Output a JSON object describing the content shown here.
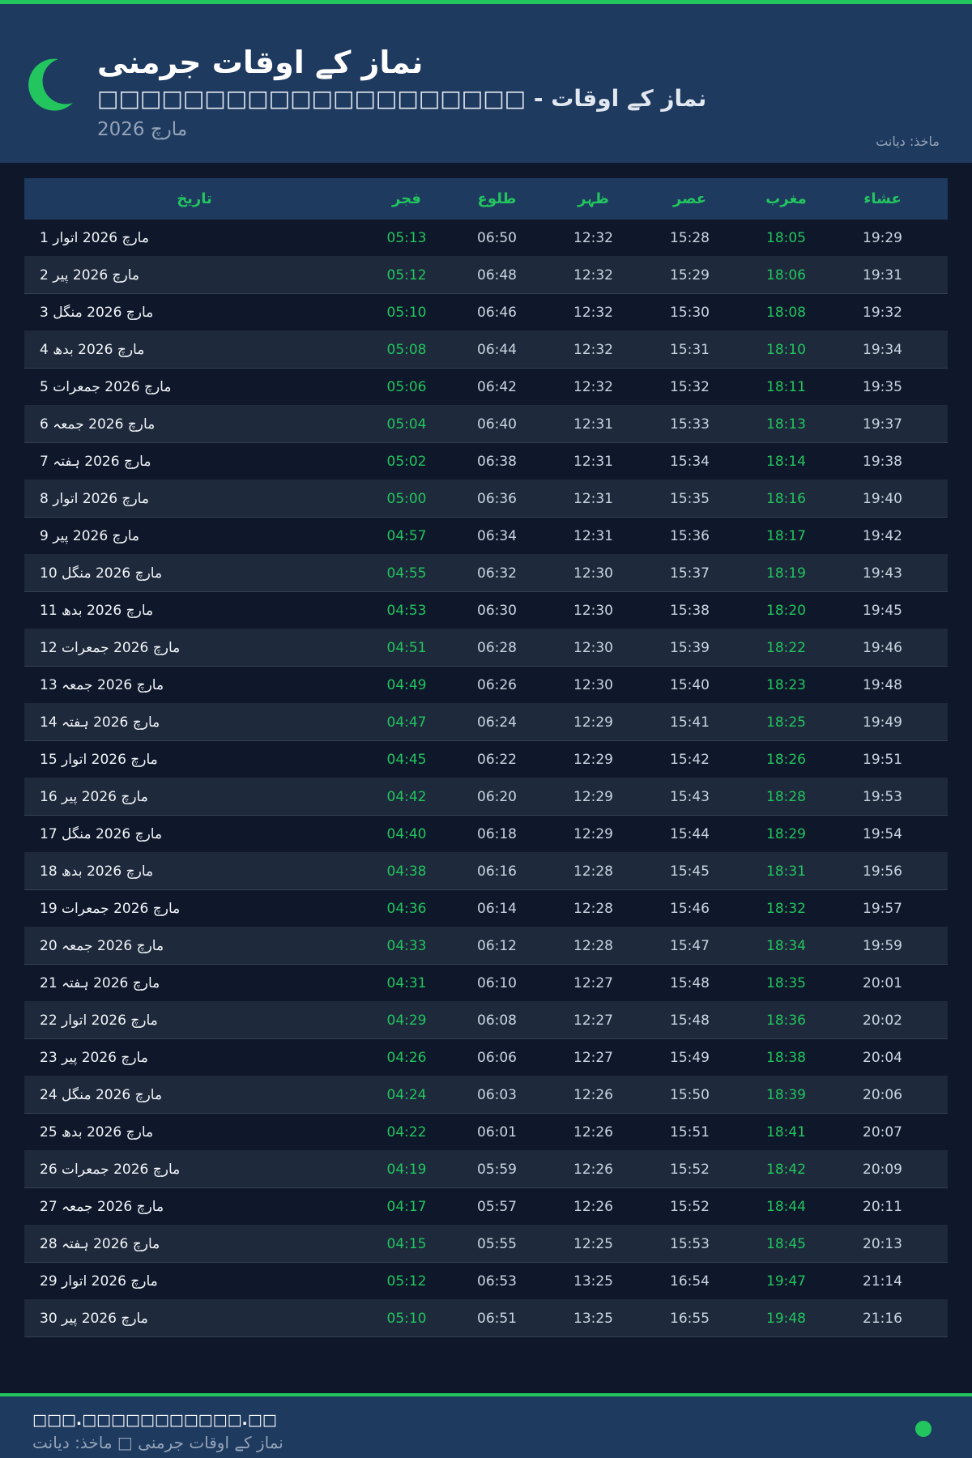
{
  "header": {
    "title": "نماز کے اوقات جرمنی",
    "subtitle": "□□□□□□□□□□□□□□□□□□□□ - نماز کے اوقات",
    "month": "مارچ 2026",
    "source": "ماخذ: دیانت"
  },
  "colors": {
    "accent": "#22c55e",
    "header_bg": "#1e3a5f",
    "page_bg": "#0f172a",
    "row_alt": "#1e293b"
  },
  "icons": {
    "logo": "crescent-moon-icon"
  },
  "table": {
    "columns": [
      "تاریخ",
      "فجر",
      "طلوع",
      "ظہر",
      "عصر",
      "مغرب",
      "عشاء"
    ],
    "rows": [
      [
        "1 مارچ 2026 اتوار",
        "05:13",
        "06:50",
        "12:32",
        "15:28",
        "18:05",
        "19:29"
      ],
      [
        "2 مارچ 2026 پیر",
        "05:12",
        "06:48",
        "12:32",
        "15:29",
        "18:06",
        "19:31"
      ],
      [
        "3 مارچ 2026 منگل",
        "05:10",
        "06:46",
        "12:32",
        "15:30",
        "18:08",
        "19:32"
      ],
      [
        "4 مارچ 2026 بدھ",
        "05:08",
        "06:44",
        "12:32",
        "15:31",
        "18:10",
        "19:34"
      ],
      [
        "5 مارچ 2026 جمعرات",
        "05:06",
        "06:42",
        "12:32",
        "15:32",
        "18:11",
        "19:35"
      ],
      [
        "6 مارچ 2026 جمعہ",
        "05:04",
        "06:40",
        "12:31",
        "15:33",
        "18:13",
        "19:37"
      ],
      [
        "7 مارچ 2026 ہفتہ",
        "05:02",
        "06:38",
        "12:31",
        "15:34",
        "18:14",
        "19:38"
      ],
      [
        "8 مارچ 2026 اتوار",
        "05:00",
        "06:36",
        "12:31",
        "15:35",
        "18:16",
        "19:40"
      ],
      [
        "9 مارچ 2026 پیر",
        "04:57",
        "06:34",
        "12:31",
        "15:36",
        "18:17",
        "19:42"
      ],
      [
        "10 مارچ 2026 منگل",
        "04:55",
        "06:32",
        "12:30",
        "15:37",
        "18:19",
        "19:43"
      ],
      [
        "11 مارچ 2026 بدھ",
        "04:53",
        "06:30",
        "12:30",
        "15:38",
        "18:20",
        "19:45"
      ],
      [
        "12 مارچ 2026 جمعرات",
        "04:51",
        "06:28",
        "12:30",
        "15:39",
        "18:22",
        "19:46"
      ],
      [
        "13 مارچ 2026 جمعہ",
        "04:49",
        "06:26",
        "12:30",
        "15:40",
        "18:23",
        "19:48"
      ],
      [
        "14 مارچ 2026 ہفتہ",
        "04:47",
        "06:24",
        "12:29",
        "15:41",
        "18:25",
        "19:49"
      ],
      [
        "15 مارچ 2026 اتوار",
        "04:45",
        "06:22",
        "12:29",
        "15:42",
        "18:26",
        "19:51"
      ],
      [
        "16 مارچ 2026 پیر",
        "04:42",
        "06:20",
        "12:29",
        "15:43",
        "18:28",
        "19:53"
      ],
      [
        "17 مارچ 2026 منگل",
        "04:40",
        "06:18",
        "12:29",
        "15:44",
        "18:29",
        "19:54"
      ],
      [
        "18 مارچ 2026 بدھ",
        "04:38",
        "06:16",
        "12:28",
        "15:45",
        "18:31",
        "19:56"
      ],
      [
        "19 مارچ 2026 جمعرات",
        "04:36",
        "06:14",
        "12:28",
        "15:46",
        "18:32",
        "19:57"
      ],
      [
        "20 مارچ 2026 جمعہ",
        "04:33",
        "06:12",
        "12:28",
        "15:47",
        "18:34",
        "19:59"
      ],
      [
        "21 مارچ 2026 ہفتہ",
        "04:31",
        "06:10",
        "12:27",
        "15:48",
        "18:35",
        "20:01"
      ],
      [
        "22 مارچ 2026 اتوار",
        "04:29",
        "06:08",
        "12:27",
        "15:48",
        "18:36",
        "20:02"
      ],
      [
        "23 مارچ 2026 پیر",
        "04:26",
        "06:06",
        "12:27",
        "15:49",
        "18:38",
        "20:04"
      ],
      [
        "24 مارچ 2026 منگل",
        "04:24",
        "06:03",
        "12:26",
        "15:50",
        "18:39",
        "20:06"
      ],
      [
        "25 مارچ 2026 بدھ",
        "04:22",
        "06:01",
        "12:26",
        "15:51",
        "18:41",
        "20:07"
      ],
      [
        "26 مارچ 2026 جمعرات",
        "04:19",
        "05:59",
        "12:26",
        "15:52",
        "18:42",
        "20:09"
      ],
      [
        "27 مارچ 2026 جمعہ",
        "04:17",
        "05:57",
        "12:26",
        "15:52",
        "18:44",
        "20:11"
      ],
      [
        "28 مارچ 2026 ہفتہ",
        "04:15",
        "05:55",
        "12:25",
        "15:53",
        "18:45",
        "20:13"
      ],
      [
        "29 مارچ 2026 اتوار",
        "05:12",
        "06:53",
        "13:25",
        "16:54",
        "19:47",
        "21:14"
      ],
      [
        "30 مارچ 2026 پیر",
        "05:10",
        "06:51",
        "13:25",
        "16:55",
        "19:48",
        "21:16"
      ]
    ]
  },
  "footer": {
    "site": "□□□.□□□□□□□□□□□.□□",
    "text": "نماز کے اوقات جرمنی □ ماخذ: دیانت"
  }
}
